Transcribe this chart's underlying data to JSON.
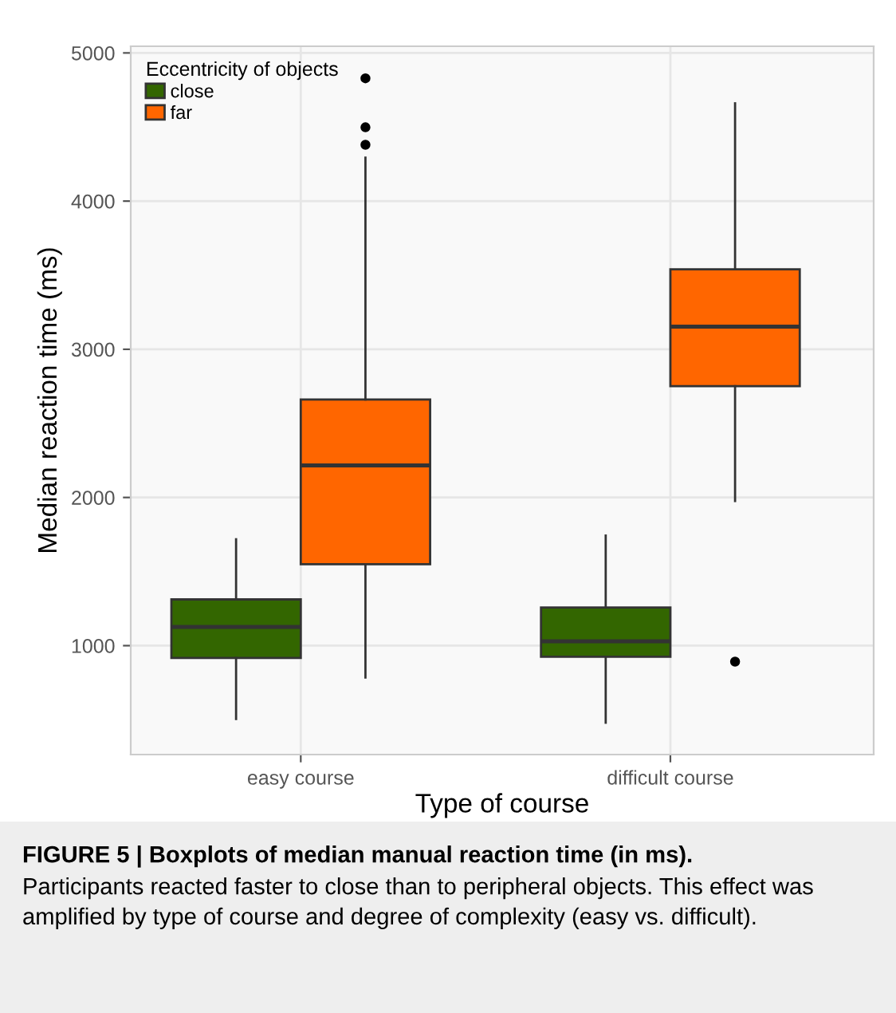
{
  "chart_data": {
    "type": "box",
    "title": "FIGURE 5 | Boxplots of median manual reaction time (in ms).",
    "annotations": [
      "Participants reacted faster to close than to peripheral objects. This effect was amplified by type of course and degree of complexity (easy vs. difficult)."
    ],
    "xlabel": "Type of course",
    "ylabel": "Median reaction time (ms)",
    "legend_title": "Eccentricity of objects",
    "categories": [
      "easy course",
      "difficult course"
    ],
    "series": [
      {
        "name": "close",
        "color": "#336600",
        "boxes": [
          {
            "low": 505,
            "q1": 917,
            "median": 1126,
            "q3": 1312,
            "high": 1718
          },
          {
            "low": 480,
            "q1": 925,
            "median": 1029,
            "q3": 1258,
            "high": 1743
          }
        ]
      },
      {
        "name": "far",
        "color": "#ff6600",
        "boxes": [
          {
            "low": 785,
            "q1": 1549,
            "median": 2216,
            "q3": 2661,
            "high": 4294,
            "outliers": [
              4380,
              4498,
              4829
            ]
          },
          {
            "low": 1976,
            "q1": 2751,
            "median": 3153,
            "q3": 3540,
            "high": 4660,
            "outliers": [
              892
            ]
          }
        ]
      }
    ],
    "ylim": [
      265,
      5045
    ],
    "yticks": [
      1000,
      2000,
      3000,
      4000,
      5000
    ],
    "grid": true,
    "legend": "top left"
  }
}
